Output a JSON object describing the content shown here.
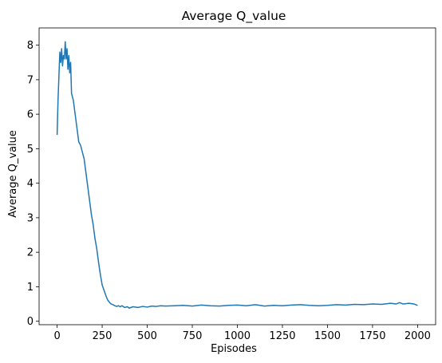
{
  "chart_data": {
    "type": "line",
    "title": "Average Q_value",
    "xlabel": "Episodes",
    "ylabel": "Average Q_value",
    "xlim": [
      -100,
      2100
    ],
    "ylim": [
      -0.1,
      8.5
    ],
    "xticks": [
      0,
      250,
      500,
      750,
      1000,
      1250,
      1500,
      1750,
      2000
    ],
    "yticks": [
      0,
      1,
      2,
      3,
      4,
      5,
      6,
      7,
      8
    ],
    "grid": false,
    "legend": "none",
    "series": [
      {
        "color": "#1f77b4",
        "x": [
          0,
          5,
          10,
          15,
          20,
          25,
          30,
          35,
          40,
          45,
          50,
          55,
          60,
          65,
          70,
          75,
          80,
          90,
          100,
          110,
          120,
          130,
          140,
          150,
          160,
          170,
          180,
          190,
          200,
          210,
          220,
          230,
          240,
          250,
          260,
          270,
          280,
          290,
          300,
          310,
          320,
          330,
          340,
          350,
          360,
          375,
          390,
          400,
          420,
          450,
          475,
          500,
          525,
          550,
          575,
          600,
          650,
          700,
          750,
          800,
          850,
          900,
          950,
          1000,
          1050,
          1100,
          1150,
          1200,
          1250,
          1300,
          1350,
          1400,
          1450,
          1500,
          1550,
          1600,
          1650,
          1700,
          1750,
          1800,
          1850,
          1880,
          1900,
          1920,
          1950,
          1980,
          2000
        ],
        "y": [
          5.4,
          6.4,
          7.1,
          7.8,
          7.5,
          7.9,
          7.4,
          7.7,
          7.6,
          8.1,
          7.6,
          7.9,
          7.3,
          7.7,
          7.2,
          7.5,
          6.6,
          6.4,
          6.0,
          5.6,
          5.2,
          5.1,
          4.9,
          4.7,
          4.3,
          3.9,
          3.5,
          3.1,
          2.8,
          2.4,
          2.1,
          1.7,
          1.35,
          1.05,
          0.9,
          0.75,
          0.62,
          0.55,
          0.5,
          0.48,
          0.45,
          0.43,
          0.45,
          0.42,
          0.45,
          0.4,
          0.42,
          0.38,
          0.42,
          0.4,
          0.43,
          0.41,
          0.44,
          0.43,
          0.45,
          0.44,
          0.45,
          0.46,
          0.44,
          0.47,
          0.45,
          0.44,
          0.46,
          0.47,
          0.45,
          0.48,
          0.44,
          0.46,
          0.45,
          0.47,
          0.48,
          0.46,
          0.45,
          0.46,
          0.48,
          0.47,
          0.49,
          0.48,
          0.5,
          0.49,
          0.52,
          0.5,
          0.54,
          0.5,
          0.52,
          0.5,
          0.46
        ]
      }
    ]
  }
}
